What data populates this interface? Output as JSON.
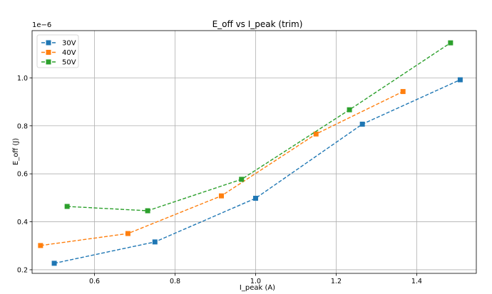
{
  "chart_data": {
    "type": "line",
    "title": "E_off vs I_peak (trim)",
    "xlabel": "I_peak (A)",
    "ylabel": "E_off (J)",
    "y_offset_label": "1e−6",
    "xlim": [
      0.445,
      1.548
    ],
    "ylim": [
      0.185,
      1.197
    ],
    "xticks": [
      0.6,
      0.8,
      1.0,
      1.2,
      1.4
    ],
    "xtick_labels": [
      "0.6",
      "0.8",
      "1.0",
      "1.2",
      "1.4"
    ],
    "yticks": [
      0.2,
      0.4,
      0.6,
      0.8,
      1.0
    ],
    "ytick_labels": [
      "0.2",
      "0.4",
      "0.6",
      "0.8",
      "1.0"
    ],
    "grid": true,
    "legend_position": "top-left",
    "series": [
      {
        "name": "30V",
        "color": "#1f77b4",
        "x": [
          0.5,
          0.75,
          1.0,
          1.265,
          1.508
        ],
        "y": [
          0.227,
          0.316,
          0.498,
          0.807,
          0.992
        ]
      },
      {
        "name": "40V",
        "color": "#ff7f0e",
        "x": [
          0.466,
          0.683,
          0.915,
          1.15,
          1.366
        ],
        "y": [
          0.301,
          0.351,
          0.508,
          0.766,
          0.943
        ]
      },
      {
        "name": "50V",
        "color": "#2ca02c",
        "x": [
          0.532,
          0.732,
          0.965,
          1.233,
          1.484
        ],
        "y": [
          0.464,
          0.446,
          0.577,
          0.867,
          1.146
        ]
      }
    ]
  }
}
